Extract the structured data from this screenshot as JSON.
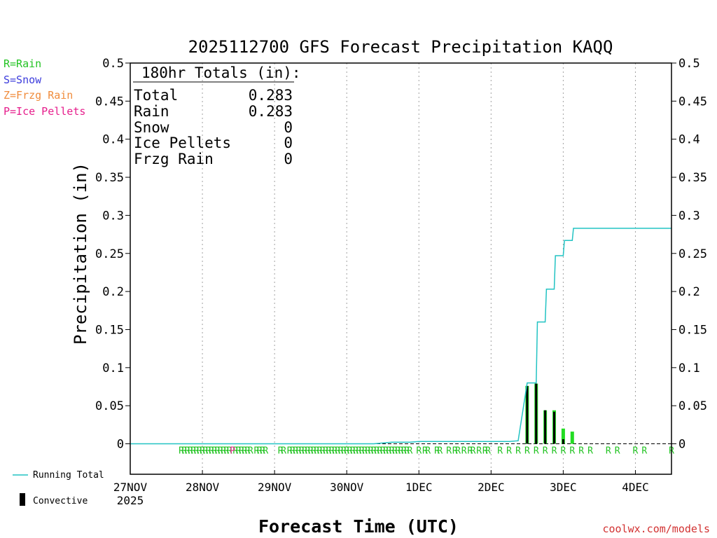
{
  "chart_data": {
    "type": "bar",
    "title": "2025112700 GFS Forecast Precipitation KAQQ",
    "xlabel": "Forecast Time (UTC)",
    "ylabel": "Precipitation (in)",
    "ylim": [
      -0.04,
      0.5
    ],
    "yticks": [
      0,
      0.05,
      0.1,
      0.15,
      0.2,
      0.25,
      0.3,
      0.35,
      0.4,
      0.45,
      0.5
    ],
    "ytick_labels": [
      "0",
      "0.05",
      "0.1",
      "0.15",
      "0.2",
      "0.25",
      "0.3",
      "0.35",
      "0.4",
      "0.45",
      "0.5"
    ],
    "xlim_hours": [
      0,
      180
    ],
    "x_ticks": [
      {
        "hour": 0,
        "label": "27NOV",
        "sublabel": "2025"
      },
      {
        "hour": 24,
        "label": "28NOV"
      },
      {
        "hour": 48,
        "label": "29NOV"
      },
      {
        "hour": 72,
        "label": "30NOV"
      },
      {
        "hour": 96,
        "label": "1DEC"
      },
      {
        "hour": 120,
        "label": "2DEC"
      },
      {
        "hour": 144,
        "label": "3DEC"
      },
      {
        "hour": 168,
        "label": "4DEC"
      }
    ],
    "grid": "dotted vertical at each day",
    "precip_type_legend": [
      {
        "label": "R=Rain",
        "color": "#22c322"
      },
      {
        "label": "S=Snow",
        "color": "#3c3cdc"
      },
      {
        "label": "Z=Frzg Rain",
        "color": "#f08c3c"
      },
      {
        "label": "P=Ice Pellets",
        "color": "#e61e8c"
      }
    ],
    "series_legend": [
      {
        "label": "Running Total",
        "color": "#22c3c3"
      },
      {
        "label": "Convective",
        "color": "#000000"
      }
    ],
    "totals_box": {
      "heading": "180hr Totals (in):",
      "rows": [
        {
          "label": "Total",
          "value": "0.283"
        },
        {
          "label": "Rain",
          "value": "0.283"
        },
        {
          "label": "Snow",
          "value": "0"
        },
        {
          "label": "Ice Pellets",
          "value": "0"
        },
        {
          "label": "Frzg Rain",
          "value": "0"
        }
      ]
    },
    "running_total": {
      "name": "Running Total",
      "points": [
        [
          0,
          0
        ],
        [
          81,
          0
        ],
        [
          84,
          0.001
        ],
        [
          87,
          0.002
        ],
        [
          93,
          0.002
        ],
        [
          96,
          0.003
        ],
        [
          126,
          0.003
        ],
        [
          129,
          0.004
        ],
        [
          132,
          0.08
        ],
        [
          135,
          0.08
        ],
        [
          135.4,
          0.16
        ],
        [
          138,
          0.16
        ],
        [
          138.4,
          0.203
        ],
        [
          141,
          0.203
        ],
        [
          141.4,
          0.247
        ],
        [
          144,
          0.247
        ],
        [
          144.4,
          0.267
        ],
        [
          147,
          0.267
        ],
        [
          147.4,
          0.283
        ],
        [
          180,
          0.283
        ]
      ]
    },
    "precip_bars": [
      {
        "hour": 132,
        "total": 0.076,
        "convective": 0.076
      },
      {
        "hour": 135,
        "total": 0.079,
        "convective": 0.079
      },
      {
        "hour": 138,
        "total": 0.044,
        "convective": 0.044
      },
      {
        "hour": 141,
        "total": 0.044,
        "convective": 0.042
      },
      {
        "hour": 144,
        "total": 0.02,
        "convective": 0.006
      },
      {
        "hour": 147,
        "total": 0.016,
        "convective": 0
      }
    ],
    "rain_marks": [
      17,
      18,
      19,
      20,
      21,
      22,
      23,
      24,
      25,
      26,
      27,
      28,
      29,
      30,
      31,
      32,
      33,
      35,
      36,
      37,
      38,
      39,
      40,
      42,
      43,
      44,
      45,
      50,
      51,
      53,
      54,
      55,
      56,
      57,
      58,
      59,
      60,
      61,
      62,
      63,
      64,
      65,
      66,
      67,
      68,
      69,
      70,
      71,
      72,
      73,
      74,
      75,
      76,
      77,
      78,
      79,
      80,
      81,
      82,
      83,
      84,
      85,
      86,
      87,
      88,
      89,
      90,
      91,
      92,
      93,
      96,
      98,
      99,
      102,
      103,
      106,
      108,
      109,
      111,
      113,
      114,
      116,
      118,
      119,
      123,
      126,
      129,
      132,
      135,
      138,
      141,
      144,
      147,
      150,
      153,
      159,
      162,
      168,
      171,
      180
    ],
    "pellet_marks": [
      34
    ],
    "rain_letter": "R",
    "pellet_letter": "P"
  },
  "credit": "coolwx.com/models"
}
